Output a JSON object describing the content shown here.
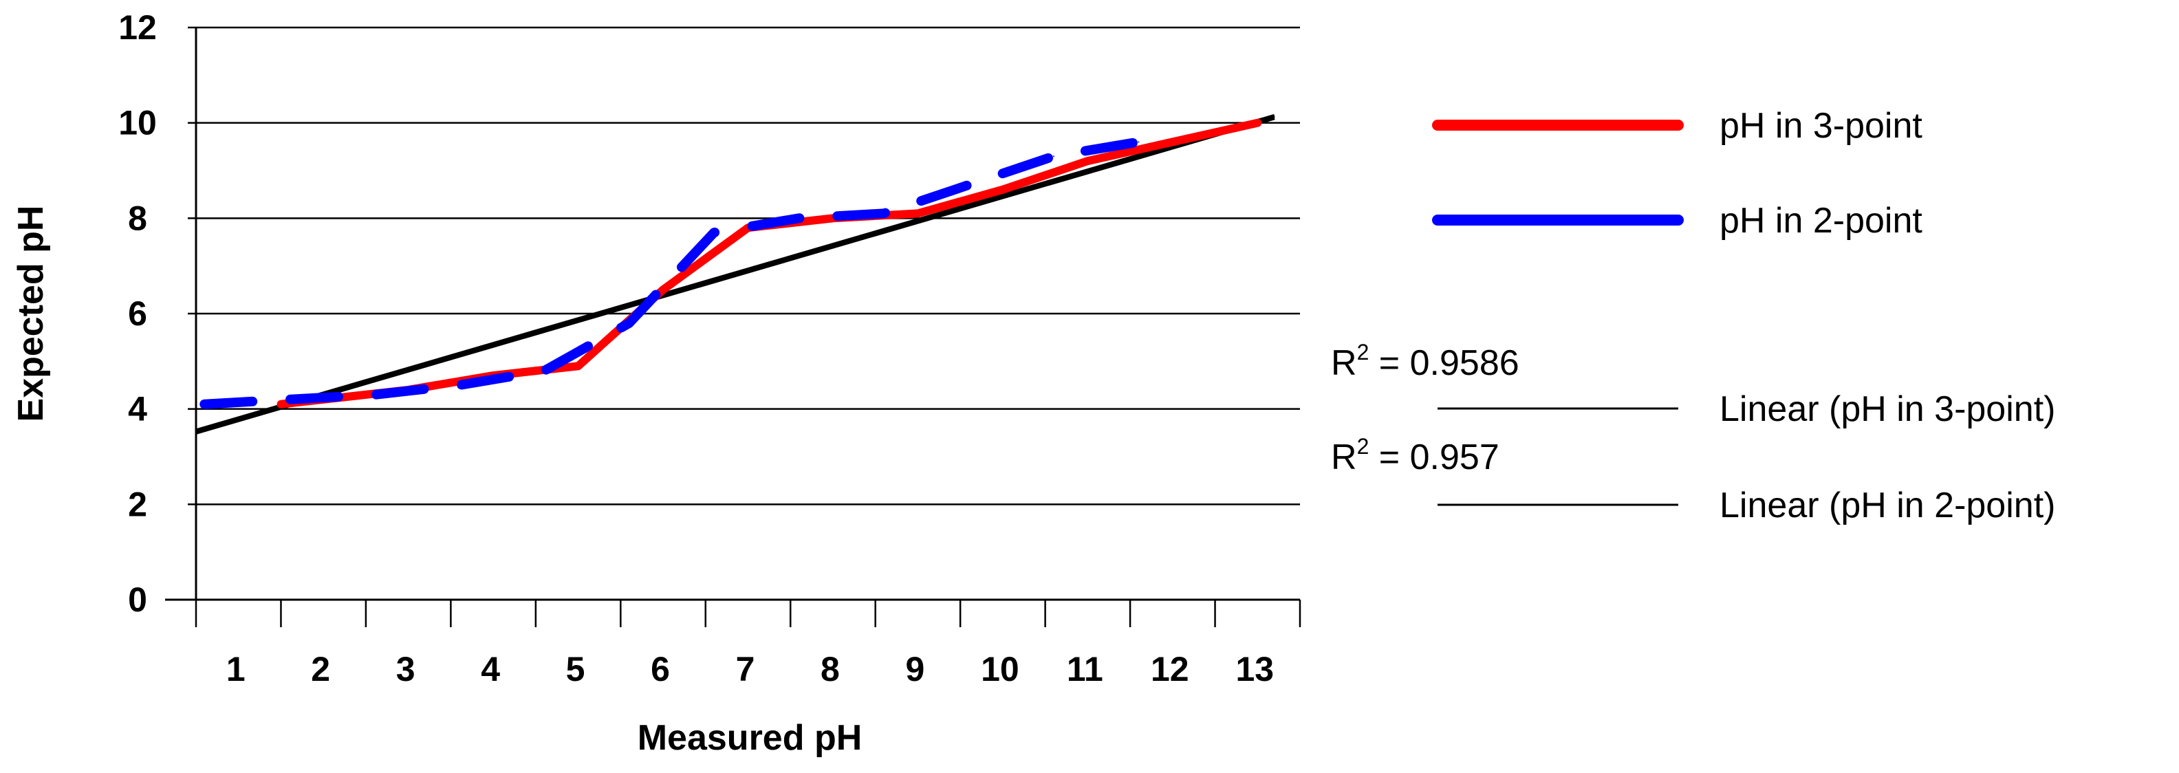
{
  "chart_data": {
    "type": "line",
    "xlabel": "Measured pH",
    "ylabel": "Expected pH",
    "x_ticks": [
      "1",
      "2",
      "3",
      "4",
      "5",
      "6",
      "7",
      "8",
      "9",
      "10",
      "11",
      "12",
      "13"
    ],
    "y_ticks": [
      "0",
      "2",
      "4",
      "6",
      "8",
      "10",
      "12"
    ],
    "xlim": [
      0.5,
      13.5
    ],
    "ylim": [
      0,
      12
    ],
    "grid": "horizontal",
    "legend_position": "right",
    "series": [
      {
        "name": "pH in 3-point",
        "color": "#ff0000",
        "x": [
          1.5,
          2,
          3,
          4,
          5,
          6,
          7,
          8,
          9,
          10,
          11,
          12,
          13
        ],
        "y": [
          4.1,
          4.2,
          4.4,
          4.7,
          4.9,
          6.5,
          7.8,
          8.0,
          8.1,
          8.6,
          9.2,
          9.6,
          10.0
        ]
      },
      {
        "name": "pH in 2-point",
        "color": "#0000ff",
        "x": [
          0.6,
          1.6,
          2.6,
          3.6,
          4.6,
          5.6,
          6.6,
          7.6,
          8.6,
          9.6,
          10.6,
          11.6
        ],
        "y": [
          4.1,
          4.2,
          4.3,
          4.5,
          4.8,
          5.8,
          7.7,
          8.0,
          8.1,
          8.7,
          9.3,
          9.6
        ]
      }
    ],
    "trendlines": [
      {
        "name": "Linear (pH in 3-point)",
        "r2_prefix": "R",
        "r2_sup": "2",
        "r2_value": " = 0.9586",
        "color": "#000000",
        "x": [
          0.5,
          13.2
        ],
        "y": [
          3.55,
          10.15
        ]
      },
      {
        "name": "Linear (pH in 2-point)",
        "r2_prefix": "R",
        "r2_sup": "2",
        "r2_value": " = 0.957",
        "color": "#000000",
        "x": [
          0.5,
          13.2
        ],
        "y": [
          3.5,
          10.1
        ]
      }
    ]
  }
}
